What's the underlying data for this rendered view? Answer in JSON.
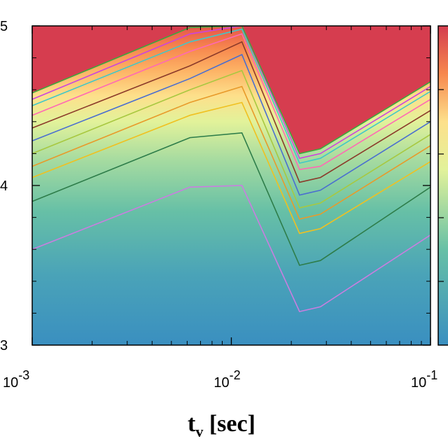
{
  "chart_data": {
    "type": "heatmap",
    "title": "",
    "xlabel": "t",
    "xlabel_sub": "v",
    "xlabel_unit": "[sec]",
    "x_scale": "log",
    "xlim": [
      0.001,
      0.1
    ],
    "ylim": [
      3,
      5
    ],
    "x_tick_labels": [
      {
        "base": "10",
        "exp": "-3",
        "value": 0.001
      },
      {
        "base": "10",
        "exp": "-2",
        "value": 0.01
      },
      {
        "base": "10",
        "exp": "-1",
        "value": 0.1
      }
    ],
    "y_tick_labels": [
      {
        "label": "5",
        "value": 5
      },
      {
        "label": "4",
        "value": 4
      },
      {
        "label": "3",
        "value": 3
      }
    ],
    "colorbar": {
      "present": true,
      "colors": [
        "#3a8fc0",
        "#67c0a6",
        "#e2f29a",
        "#fde08b",
        "#f7884e",
        "#d43d4f"
      ]
    },
    "contours": [
      {
        "color": "#c97ee0",
        "points": [
          [
            0.001,
            3.6
          ],
          [
            0.0062,
            3.99
          ],
          [
            0.0113,
            4.0
          ],
          [
            0.022,
            3.21
          ],
          [
            0.028,
            3.24
          ],
          [
            0.1,
            3.69
          ]
        ]
      },
      {
        "color": "#2e7d4a",
        "points": [
          [
            0.001,
            3.9
          ],
          [
            0.0062,
            4.3
          ],
          [
            0.0113,
            4.33
          ],
          [
            0.022,
            3.5
          ],
          [
            0.028,
            3.53
          ],
          [
            0.1,
            3.99
          ]
        ]
      },
      {
        "color": "#f0c020",
        "points": [
          [
            0.001,
            4.05
          ],
          [
            0.0062,
            4.44
          ],
          [
            0.0113,
            4.52
          ],
          [
            0.022,
            3.7
          ],
          [
            0.028,
            3.73
          ],
          [
            0.1,
            4.15
          ]
        ]
      },
      {
        "color": "#e89a2a",
        "points": [
          [
            0.001,
            4.12
          ],
          [
            0.0062,
            4.52
          ],
          [
            0.0113,
            4.62
          ],
          [
            0.022,
            3.79
          ],
          [
            0.028,
            3.82
          ],
          [
            0.1,
            4.25
          ]
        ]
      },
      {
        "color": "#a8c840",
        "points": [
          [
            0.001,
            4.2
          ],
          [
            0.0062,
            4.6
          ],
          [
            0.0113,
            4.72
          ],
          [
            0.022,
            3.86
          ],
          [
            0.028,
            3.89
          ],
          [
            0.1,
            4.32
          ]
        ]
      },
      {
        "color": "#4a6ed0",
        "points": [
          [
            0.001,
            4.28
          ],
          [
            0.0062,
            4.67
          ],
          [
            0.0113,
            4.82
          ],
          [
            0.022,
            3.94
          ],
          [
            0.028,
            3.97
          ],
          [
            0.1,
            4.4
          ]
        ]
      },
      {
        "color": "#8b3a2a",
        "points": [
          [
            0.001,
            4.36
          ],
          [
            0.0062,
            4.75
          ],
          [
            0.0113,
            4.9
          ],
          [
            0.022,
            4.02
          ],
          [
            0.028,
            4.05
          ],
          [
            0.1,
            4.47
          ]
        ]
      },
      {
        "color": "#ff69b4",
        "points": [
          [
            0.001,
            4.44
          ],
          [
            0.0062,
            4.84
          ],
          [
            0.0113,
            4.95
          ],
          [
            0.022,
            4.1
          ],
          [
            0.028,
            4.12
          ],
          [
            0.1,
            4.54
          ]
        ]
      },
      {
        "color": "#40c8c8",
        "points": [
          [
            0.001,
            4.5
          ],
          [
            0.0062,
            4.9
          ],
          [
            0.0113,
            4.98
          ],
          [
            0.022,
            4.14
          ],
          [
            0.028,
            4.17
          ],
          [
            0.1,
            4.59
          ]
        ]
      },
      {
        "color": "#cc44dd",
        "points": [
          [
            0.001,
            4.54
          ],
          [
            0.0062,
            4.95
          ],
          [
            0.0113,
            5.0
          ],
          [
            0.022,
            4.17
          ],
          [
            0.028,
            4.2
          ],
          [
            0.1,
            4.62
          ]
        ]
      },
      {
        "color": "#3ca83c",
        "points": [
          [
            0.001,
            4.58
          ],
          [
            0.0062,
            4.99
          ],
          [
            0.0113,
            5.0
          ],
          [
            0.022,
            4.2
          ],
          [
            0.028,
            4.23
          ],
          [
            0.1,
            4.65
          ]
        ]
      }
    ]
  }
}
